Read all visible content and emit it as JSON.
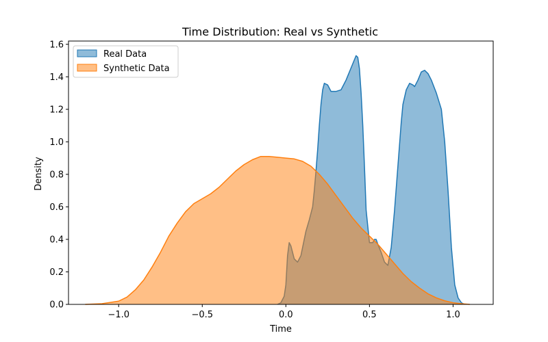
{
  "chart_data": {
    "type": "area",
    "title": "Time Distribution: Real vs Synthetic",
    "xlabel": "Time",
    "ylabel": "Density",
    "xlim": [
      -1.3,
      1.24
    ],
    "ylim": [
      0,
      1.62
    ],
    "xticks": [
      -1.0,
      -0.5,
      0.0,
      0.5,
      1.0
    ],
    "xtick_labels": [
      "−1.0",
      "−0.5",
      "0.0",
      "0.5",
      "1.0"
    ],
    "yticks": [
      0.0,
      0.2,
      0.4,
      0.6,
      0.8,
      1.0,
      1.2,
      1.4,
      1.6
    ],
    "ytick_labels": [
      "0.0",
      "0.2",
      "0.4",
      "0.6",
      "0.8",
      "1.0",
      "1.2",
      "1.4",
      "1.6"
    ],
    "grid": false,
    "legend_position": "top-left",
    "series": [
      {
        "name": "Real Data",
        "color": "#1f77b4",
        "fill_color": "#1f77b4",
        "fill_opacity": 0.5,
        "x": [
          -0.05,
          -0.03,
          -0.01,
          0.0,
          0.01,
          0.02,
          0.03,
          0.05,
          0.07,
          0.09,
          0.1,
          0.12,
          0.14,
          0.16,
          0.17,
          0.18,
          0.19,
          0.2,
          0.21,
          0.22,
          0.23,
          0.25,
          0.27,
          0.3,
          0.33,
          0.36,
          0.38,
          0.4,
          0.42,
          0.43,
          0.44,
          0.45,
          0.46,
          0.47,
          0.48,
          0.5,
          0.52,
          0.53,
          0.54,
          0.55,
          0.57,
          0.59,
          0.61,
          0.63,
          0.65,
          0.67,
          0.69,
          0.7,
          0.72,
          0.74,
          0.76,
          0.77,
          0.79,
          0.81,
          0.83,
          0.85,
          0.87,
          0.9,
          0.93,
          0.95,
          0.97,
          0.99,
          1.01,
          1.03,
          1.05,
          1.07
        ],
        "y": [
          0.0,
          0.01,
          0.05,
          0.12,
          0.3,
          0.38,
          0.36,
          0.28,
          0.26,
          0.3,
          0.35,
          0.45,
          0.52,
          0.6,
          0.7,
          0.82,
          0.95,
          1.1,
          1.23,
          1.32,
          1.36,
          1.35,
          1.31,
          1.31,
          1.32,
          1.38,
          1.43,
          1.48,
          1.53,
          1.52,
          1.45,
          1.3,
          1.1,
          0.85,
          0.58,
          0.38,
          0.38,
          0.4,
          0.4,
          0.37,
          0.32,
          0.26,
          0.24,
          0.35,
          0.58,
          0.85,
          1.12,
          1.23,
          1.32,
          1.36,
          1.35,
          1.34,
          1.38,
          1.43,
          1.44,
          1.42,
          1.38,
          1.3,
          1.2,
          1.0,
          0.7,
          0.35,
          0.12,
          0.04,
          0.01,
          0.0
        ]
      },
      {
        "name": "Synthetic Data",
        "color": "#ff7f0e",
        "fill_color": "#ff7f0e",
        "fill_opacity": 0.5,
        "x": [
          -1.2,
          -1.1,
          -1.0,
          -0.95,
          -0.9,
          -0.85,
          -0.8,
          -0.75,
          -0.7,
          -0.65,
          -0.6,
          -0.55,
          -0.5,
          -0.45,
          -0.4,
          -0.35,
          -0.3,
          -0.25,
          -0.2,
          -0.15,
          -0.1,
          -0.05,
          0.0,
          0.05,
          0.1,
          0.15,
          0.2,
          0.25,
          0.3,
          0.35,
          0.4,
          0.45,
          0.5,
          0.55,
          0.6,
          0.65,
          0.7,
          0.75,
          0.8,
          0.85,
          0.9,
          0.95,
          1.0,
          1.05,
          1.1
        ],
        "y": [
          0.0,
          0.004,
          0.02,
          0.045,
          0.09,
          0.15,
          0.23,
          0.32,
          0.42,
          0.5,
          0.57,
          0.62,
          0.65,
          0.68,
          0.72,
          0.77,
          0.82,
          0.86,
          0.89,
          0.91,
          0.91,
          0.905,
          0.9,
          0.895,
          0.88,
          0.85,
          0.8,
          0.74,
          0.67,
          0.6,
          0.53,
          0.47,
          0.42,
          0.37,
          0.31,
          0.25,
          0.19,
          0.14,
          0.1,
          0.065,
          0.04,
          0.022,
          0.01,
          0.004,
          0.0
        ]
      }
    ]
  }
}
